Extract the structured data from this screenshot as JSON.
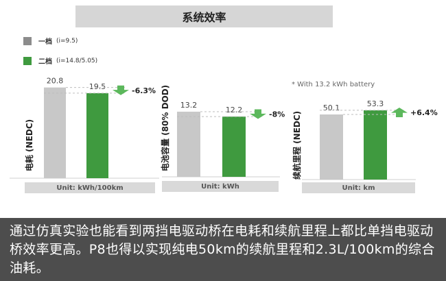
{
  "title": "系统效率",
  "colors": {
    "gray_bar": "#c8c8c8",
    "green_bar": "#3f9a3f",
    "arrow_green": "#5cb85c"
  },
  "legend": [
    {
      "name": "一档",
      "ratio": "(i=9.5)",
      "color": "#8c8c8c"
    },
    {
      "name": "二档",
      "ratio": "(i=14.8/5.05)",
      "color": "#3f9a3f"
    }
  ],
  "footnote": "* With 13.2 kWh battery",
  "chart_data": [
    {
      "type": "bar",
      "ylabel": "电耗 (NEDC)",
      "unit_label": "Unit: kWh/100km",
      "categories": [
        "一档",
        "二档"
      ],
      "values": [
        20.8,
        19.5
      ],
      "value_labels": [
        "20.8",
        "19.5"
      ],
      "change_label": "-6.3%",
      "change_direction": "down",
      "ylim": [
        0,
        22
      ]
    },
    {
      "type": "bar",
      "ylabel": "电池容量 (80% DOD)",
      "unit_label": "Unit: kWh",
      "categories": [
        "一档",
        "二档"
      ],
      "values": [
        13.2,
        12.2
      ],
      "value_labels": [
        "13.2",
        "12.2"
      ],
      "change_label": "-8%",
      "change_direction": "down",
      "ylim": [
        0,
        15
      ]
    },
    {
      "type": "bar",
      "ylabel": "续航里程 (NEDC)",
      "unit_label": "Unit: km",
      "categories": [
        "一档",
        "二档"
      ],
      "values": [
        50.1,
        53.3
      ],
      "value_labels": [
        "50.1",
        "53.3"
      ],
      "change_label": "+6.4%",
      "change_direction": "up",
      "ylim": [
        0,
        58
      ]
    }
  ],
  "caption": "通过仿真实验也能看到两挡电驱动桥在电耗和续航里程上都比单挡电驱动桥效率更高。P8也得以实现纯电50km的续航里程和2.3L/100km的综合油耗。"
}
